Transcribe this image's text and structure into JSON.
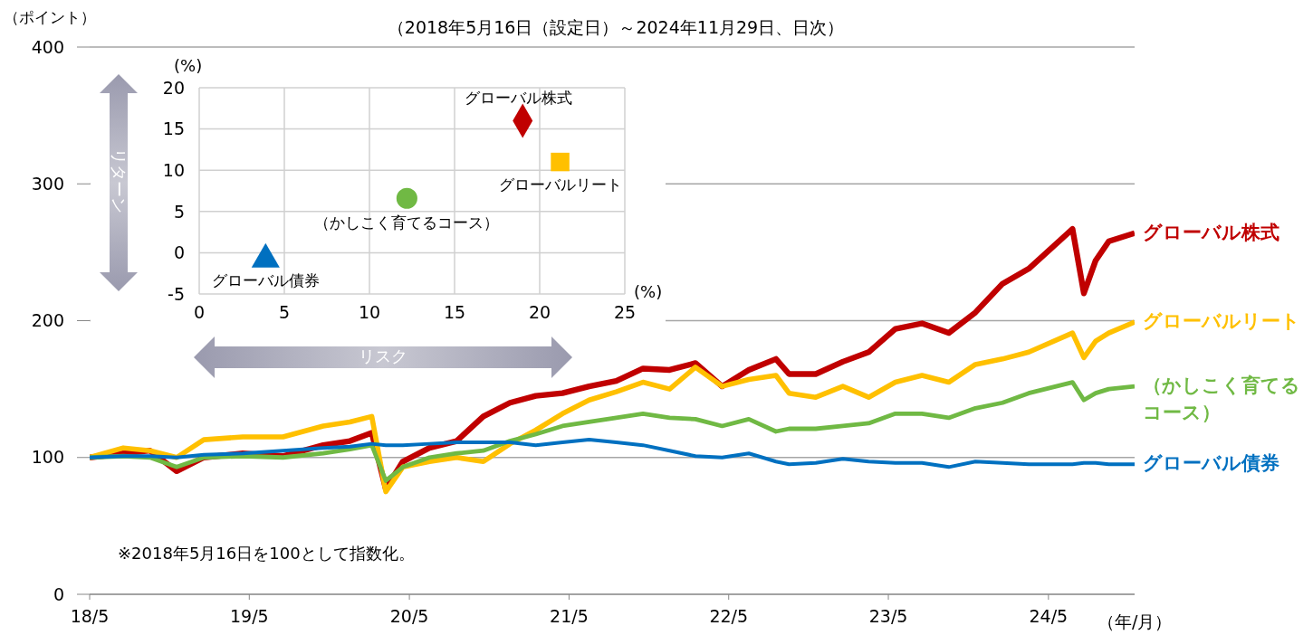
{
  "chart_data": [
    {
      "type": "line",
      "subtitle": "（2018年5月16日（設定日）～2024年11月29日、日次）",
      "ylabel": "（ポイント）",
      "xlabel": "（年/月）",
      "annotations": [
        "※2018年5月16日を100として指数化。"
      ],
      "x": [
        "2018-05-16",
        "2018-08",
        "2018-10",
        "2018-12",
        "2019-02",
        "2019-05",
        "2019-08",
        "2019-11",
        "2020-01",
        "2020-02-20",
        "2020-03-23",
        "2020-05",
        "2020-07",
        "2020-09",
        "2020-11",
        "2021-01",
        "2021-03",
        "2021-05",
        "2021-07",
        "2021-09",
        "2021-11",
        "2022-01",
        "2022-03",
        "2022-05",
        "2022-07",
        "2022-09",
        "2022-10",
        "2022-12",
        "2023-02",
        "2023-04",
        "2023-06",
        "2023-08",
        "2023-10",
        "2023-12",
        "2024-02",
        "2024-04",
        "2024-07-10",
        "2024-08-05",
        "2024-09",
        "2024-10",
        "2024-11-29"
      ],
      "series": [
        {
          "name": "グローバル株式",
          "color": "#c00000",
          "values": [
            100,
            103,
            105,
            90,
            100,
            103,
            101,
            109,
            112,
            118,
            77,
            97,
            107,
            112,
            130,
            140,
            145,
            147,
            152,
            156,
            165,
            164,
            169,
            152,
            164,
            172,
            161,
            161,
            170,
            177,
            194,
            198,
            191,
            206,
            227,
            238,
            267,
            220,
            244,
            258,
            264
          ]
        },
        {
          "name": "グローバルリート",
          "color": "#ffc000",
          "values": [
            100,
            107,
            105,
            100,
            113,
            115,
            115,
            123,
            126,
            130,
            75,
            93,
            97,
            100,
            97,
            110,
            120,
            132,
            142,
            148,
            155,
            150,
            166,
            152,
            157,
            160,
            147,
            144,
            152,
            144,
            155,
            160,
            155,
            168,
            172,
            177,
            191,
            173,
            185,
            191,
            199
          ]
        },
        {
          "name": "（かしこく育てるコース）",
          "color": "#70b944",
          "values": [
            100,
            101,
            100,
            93,
            100,
            101,
            100,
            103,
            106,
            109,
            83,
            93,
            100,
            103,
            105,
            112,
            117,
            123,
            126,
            129,
            132,
            129,
            128,
            123,
            128,
            119,
            121,
            121,
            123,
            125,
            132,
            132,
            129,
            136,
            140,
            147,
            155,
            142,
            147,
            150,
            152
          ]
        },
        {
          "name": "グローバル債券",
          "color": "#0070c0",
          "values": [
            100,
            101,
            101,
            100,
            102,
            103,
            105,
            107,
            108,
            110,
            109,
            109,
            110,
            111,
            111,
            111,
            109,
            111,
            113,
            111,
            109,
            105,
            101,
            100,
            103,
            97,
            95,
            96,
            99,
            97,
            96,
            96,
            93,
            97,
            96,
            95,
            95,
            96,
            96,
            95,
            95
          ]
        }
      ],
      "xlim": [
        "2018-05-16",
        "2024-11-29"
      ],
      "xticks": [
        {
          "value": "2018-05-16",
          "label": "18/5"
        },
        {
          "value": "2019-05-16",
          "label": "19/5"
        },
        {
          "value": "2020-05-16",
          "label": "20/5"
        },
        {
          "value": "2021-05-16",
          "label": "21/5"
        },
        {
          "value": "2022-05-16",
          "label": "22/5"
        },
        {
          "value": "2023-05-16",
          "label": "23/5"
        },
        {
          "value": "2024-05-16",
          "label": "24/5"
        }
      ],
      "ylim": [
        0,
        400
      ],
      "yticks": [
        0,
        100,
        200,
        300,
        400
      ],
      "grid": "y",
      "legend": false
    },
    {
      "type": "scatter",
      "xlabel": "リスク",
      "ylabel": "リターン",
      "annotations": [
        "(%)",
        "(%)"
      ],
      "series": [
        {
          "name": "グローバル株式",
          "color": "#c00000",
          "marker": "diamond",
          "x": [
            19.0
          ],
          "values": [
            16.0
          ]
        },
        {
          "name": "グローバルリート",
          "color": "#ffc000",
          "marker": "square",
          "x": [
            21.2
          ],
          "values": [
            11.0
          ]
        },
        {
          "name": "（かしこく育てるコース）",
          "color": "#70b944",
          "marker": "circle",
          "x": [
            12.2
          ],
          "values": [
            6.6
          ]
        },
        {
          "name": "グローバル債券",
          "color": "#0070c0",
          "marker": "triangle",
          "x": [
            3.9
          ],
          "values": [
            -0.8
          ]
        }
      ],
      "xlim": [
        0,
        25
      ],
      "xticks": [
        0,
        5,
        10,
        15,
        20,
        25
      ],
      "ylim": [
        -5,
        20
      ],
      "yticks": [
        -5,
        0,
        5,
        10,
        15,
        20
      ],
      "grid": true,
      "legend": false
    }
  ]
}
